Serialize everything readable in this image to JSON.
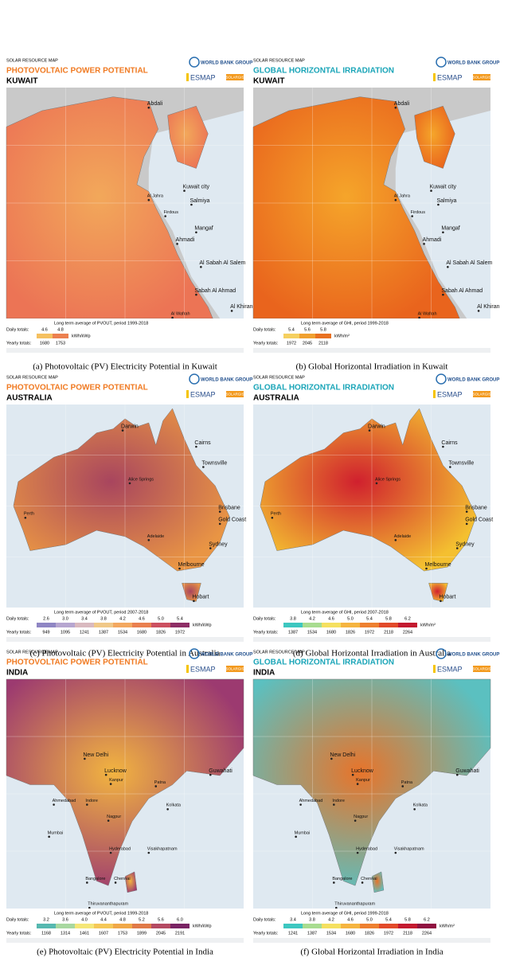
{
  "panels": [
    {
      "header": {
        "source": "SOLAR RESOURCE MAP",
        "title": "PHOTOVOLTAIC POWER POTENTIAL",
        "country": "KUWAIT"
      },
      "logos": {
        "wbg": "WORLD BANK GROUP",
        "esmap": "ESMAP",
        "solargis": "SOLARGIS"
      },
      "places": [
        "Abdali",
        "Kuwait city",
        "Al Jahra",
        "Salmiya",
        "Firdous",
        "Mangaf",
        "Ahmadi",
        "Al Sabah Al Salem",
        "Sabah Al Ahmad",
        "Al Khiran",
        "Al Wafrah"
      ],
      "legend": {
        "caption": "Long term average of PVOUT, period 1999-2018",
        "daily_label": "Daily totals:",
        "daily": [
          "4.6",
          "4.8"
        ],
        "unit": "kWh/kWp",
        "yearly_label": "Yearly totals:",
        "yearly": [
          "1680",
          "1753"
        ]
      },
      "caption": "(a)   Photovoltaic (PV) Electricity Potential in Kuwait"
    },
    {
      "header": {
        "source": "SOLAR RESOURCE MAP",
        "title": "GLOBAL HORIZONTAL IRRADIATION",
        "country": "KUWAIT"
      },
      "logos": {
        "wbg": "WORLD BANK GROUP",
        "esmap": "ESMAP",
        "solargis": "SOLARGIS"
      },
      "places": [
        "Abdali",
        "Kuwait city",
        "Al Jahra",
        "Salmiya",
        "Firdous",
        "Mangaf",
        "Ahmadi",
        "Al Sabah Al Salem",
        "Sabah Al Ahmad",
        "Al Khiran",
        "Al Wafrah"
      ],
      "legend": {
        "caption": "Long term average of GHI, period 1999-2018",
        "daily_label": "Daily totals:",
        "daily": [
          "5.4",
          "5.6",
          "5.8"
        ],
        "unit": "kWh/m²",
        "yearly_label": "Yearly totals:",
        "yearly": [
          "1972",
          "2045",
          "2118"
        ]
      },
      "caption": "(b)   Global Horizontal Irradiation in Kuwait"
    },
    {
      "header": {
        "source": "SOLAR RESOURCE MAP",
        "title": "PHOTOVOLTAIC POWER POTENTIAL",
        "country": "AUSTRALIA"
      },
      "logos": {
        "wbg": "WORLD BANK GROUP",
        "esmap": "ESMAP",
        "solargis": "SOLARGIS"
      },
      "places": [
        "Darwin",
        "Cairns",
        "Townsville",
        "Alice Springs",
        "Brisbane",
        "Gold Coast",
        "Perth",
        "Adelaide",
        "Sydney",
        "Melbourne",
        "Hobart"
      ],
      "legend": {
        "caption": "Long term average of PVOUT, period 2007-2018",
        "daily_label": "Daily totals:",
        "daily": [
          "2.6",
          "3.0",
          "3.4",
          "3.8",
          "4.2",
          "4.6",
          "5.0",
          "5.4"
        ],
        "unit": "kWh/kWp",
        "yearly_label": "Yearly totals:",
        "yearly": [
          "949",
          "1095",
          "1241",
          "1387",
          "1534",
          "1680",
          "1826",
          "1972"
        ]
      },
      "caption": "(c)   Photovoltaic (PV) Electricity Potential in Australia"
    },
    {
      "header": {
        "source": "SOLAR RESOURCE MAP",
        "title": "GLOBAL HORIZONTAL IRRADIATION",
        "country": "AUSTRALIA"
      },
      "logos": {
        "wbg": "WORLD BANK GROUP",
        "esmap": "ESMAP",
        "solargis": "SOLARGIS"
      },
      "places": [
        "Darwin",
        "Cairns",
        "Townsville",
        "Alice Springs",
        "Brisbane",
        "Gold Coast",
        "Perth",
        "Adelaide",
        "Sydney",
        "Melbourne",
        "Hobart"
      ],
      "legend": {
        "caption": "Long term average of GHI, period 2007-2018",
        "daily_label": "Daily totals:",
        "daily": [
          "3.8",
          "4.2",
          "4.6",
          "5.0",
          "5.4",
          "5.8",
          "6.2"
        ],
        "unit": "kWh/m²",
        "yearly_label": "Yearly totals:",
        "yearly": [
          "1387",
          "1534",
          "1680",
          "1826",
          "1972",
          "2118",
          "2264"
        ]
      },
      "caption": "(d)   Global Horizontal Irradiation in Australia"
    },
    {
      "header": {
        "source": "SOLAR RESOURCE MAP",
        "title": "PHOTOVOLTAIC POWER POTENTIAL",
        "country": "INDIA"
      },
      "logos": {
        "wbg": "WORLD BANK GROUP",
        "esmap": "ESMAP",
        "solargis": "SOLARGIS"
      },
      "places": [
        "New Delhi",
        "Lucknow",
        "Kanpur",
        "Patna",
        "Guwahati",
        "Ahmedabad",
        "Indore",
        "Kolkata",
        "Nagpur",
        "Mumbai",
        "Hyderabad",
        "Visakhapatnam",
        "Bangalore",
        "Chennai",
        "Thiruvananthapuram"
      ],
      "legend": {
        "caption": "Long term average of PVOUT, period 1999-2018",
        "daily_label": "Daily totals:",
        "daily": [
          "3.2",
          "3.6",
          "4.0",
          "4.4",
          "4.8",
          "5.2",
          "5.6",
          "6.0"
        ],
        "unit": "kWh/kWp",
        "yearly_label": "Yearly totals:",
        "yearly": [
          "1168",
          "1314",
          "1461",
          "1607",
          "1753",
          "1899",
          "2045",
          "2191"
        ]
      },
      "caption": "(e)   Photovoltaic (PV) Electricity Potential in India"
    },
    {
      "header": {
        "source": "SOLAR RESOURCE MAP",
        "title": "GLOBAL HORIZONTAL IRRADIATION",
        "country": "INDIA"
      },
      "logos": {
        "wbg": "WORLD BANK GROUP",
        "esmap": "ESMAP",
        "solargis": "SOLARGIS"
      },
      "places": [
        "New Delhi",
        "Lucknow",
        "Kanpur",
        "Patna",
        "Guwahati",
        "Ahmedabad",
        "Indore",
        "Kolkata",
        "Nagpur",
        "Mumbai",
        "Hyderabad",
        "Visakhapatnam",
        "Bangalore",
        "Chennai",
        "Thiruvananthapuram"
      ],
      "legend": {
        "caption": "Long term average of GHI, period 1999-2018",
        "daily_label": "Daily totals:",
        "daily": [
          "3.4",
          "3.8",
          "4.2",
          "4.6",
          "5.0",
          "5.4",
          "5.8",
          "6.2"
        ],
        "unit": "kWh/m²",
        "yearly_label": "Yearly totals:",
        "yearly": [
          "1241",
          "1387",
          "1534",
          "1680",
          "1826",
          "1972",
          "2118",
          "2264"
        ]
      },
      "caption": "(f)   Global Horizontal Irradiation in India"
    }
  ]
}
